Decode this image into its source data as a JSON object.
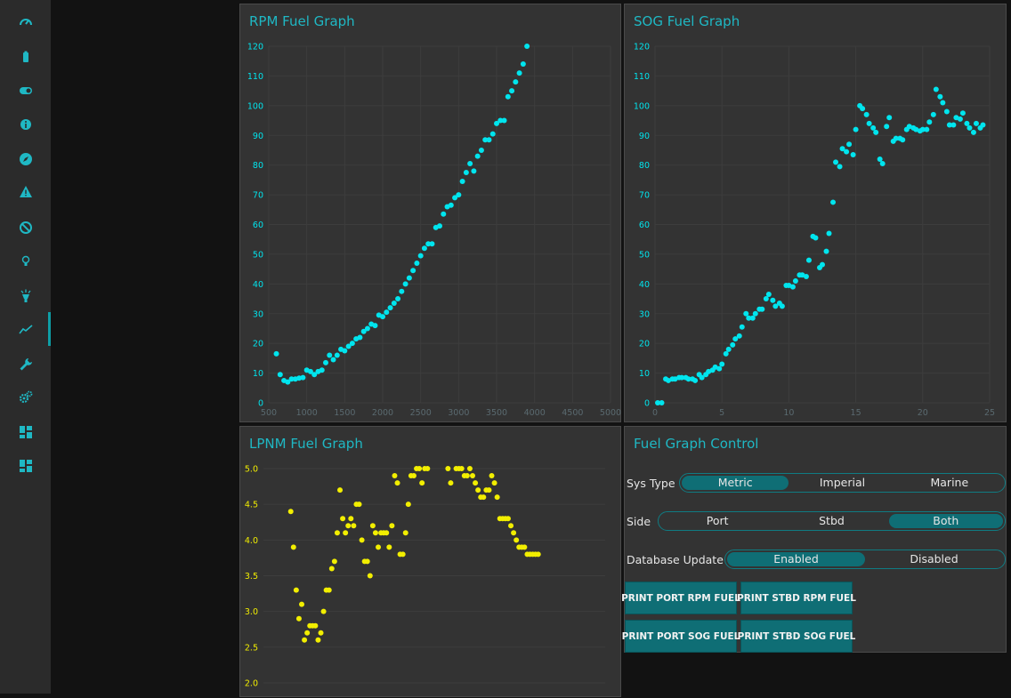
{
  "sidebar": {
    "accent": "#0e9ea6",
    "items": [
      {
        "name": "gauge-icon"
      },
      {
        "name": "battery-icon"
      },
      {
        "name": "toggle-icon"
      },
      {
        "name": "info-icon"
      },
      {
        "name": "compass-icon"
      },
      {
        "name": "warning-icon"
      },
      {
        "name": "ban-icon"
      },
      {
        "name": "lightbulb-icon"
      },
      {
        "name": "spotlight-icon"
      },
      {
        "name": "chart-line-icon",
        "active": true
      },
      {
        "name": "wrench-icon"
      },
      {
        "name": "gears-icon"
      },
      {
        "name": "dashboard-icon"
      },
      {
        "name": "dashboard-alt-icon"
      }
    ]
  },
  "rpm_panel": {
    "title": "RPM Fuel Graph"
  },
  "sog_panel": {
    "title": "SOG Fuel Graph"
  },
  "lpnm_panel": {
    "title": "LPNM Fuel Graph"
  },
  "control": {
    "title": "Fuel Graph Control",
    "sys_type": {
      "label": "Sys Type",
      "options": [
        "Metric",
        "Imperial",
        "Marine"
      ],
      "selected": "Metric"
    },
    "side": {
      "label": "Side",
      "options": [
        "Port",
        "Stbd",
        "Both"
      ],
      "selected": "Both"
    },
    "db_update": {
      "label": "Database Update",
      "options": [
        "Enabled",
        "Disabled"
      ],
      "selected": "Enabled"
    },
    "buttons": {
      "print_port_rpm": "PRINT PORT RPM FUEL",
      "print_stbd_rpm": "PRINT STBD RPM FUEL",
      "print_port_sog": "PRINT PORT SOG FUEL",
      "print_stbd_sog": "PRINT STBD SOG FUEL"
    }
  },
  "chart_data": [
    {
      "type": "scatter",
      "title": "RPM Fuel Graph",
      "color": "#00e5ee",
      "xlim": [
        500,
        5000
      ],
      "ylim": [
        0,
        120
      ],
      "xticks": [
        500,
        1000,
        1500,
        2000,
        2500,
        3000,
        3500,
        4000,
        4500,
        5000
      ],
      "yticks": [
        0,
        10,
        20,
        30,
        40,
        50,
        60,
        70,
        80,
        90,
        100,
        110,
        120
      ],
      "grid": true,
      "x": [
        600,
        650,
        700,
        750,
        800,
        850,
        900,
        950,
        1000,
        1050,
        1100,
        1150,
        1200,
        1250,
        1300,
        1350,
        1400,
        1450,
        1500,
        1550,
        1600,
        1650,
        1700,
        1750,
        1800,
        1850,
        1900,
        1950,
        2000,
        2050,
        2100,
        2150,
        2200,
        2250,
        2300,
        2350,
        2400,
        2450,
        2500,
        2550,
        2600,
        2650,
        2700,
        2750,
        2800,
        2850,
        2900,
        2950,
        3000,
        3050,
        3100,
        3150,
        3200,
        3250,
        3300,
        3350,
        3400,
        3450,
        3500,
        3550,
        3600,
        3650,
        3700,
        3750,
        3800,
        3850,
        3900
      ],
      "y": [
        16.5,
        9.5,
        7.5,
        7,
        8,
        8,
        8.3,
        8.5,
        11,
        10.5,
        9.5,
        10.5,
        11,
        13.5,
        16,
        14.5,
        16,
        18,
        17.5,
        19,
        20,
        21.5,
        22,
        24,
        25,
        26.5,
        26,
        29.5,
        29,
        30.5,
        32,
        33.5,
        35,
        37.5,
        40,
        42,
        44.5,
        47,
        49.5,
        52,
        53.5,
        53.5,
        59,
        59.5,
        63.5,
        66,
        66.5,
        69,
        70,
        74.5,
        77.5,
        80.5,
        78,
        83,
        85,
        88.5,
        88.5,
        90.5,
        94,
        95,
        95,
        103,
        105,
        108,
        111,
        114,
        120
      ]
    },
    {
      "type": "scatter",
      "title": "SOG Fuel Graph",
      "color": "#00e5ee",
      "xlim": [
        0,
        25
      ],
      "ylim": [
        0,
        120
      ],
      "xticks": [
        0,
        5,
        10,
        15,
        20,
        25
      ],
      "yticks": [
        0,
        10,
        20,
        30,
        40,
        50,
        60,
        70,
        80,
        90,
        100,
        110,
        120
      ],
      "grid": true,
      "x": [
        0.2,
        0.5,
        0.8,
        1.0,
        1.3,
        1.5,
        1.8,
        2.0,
        2.3,
        2.5,
        2.8,
        3.0,
        3.3,
        3.5,
        3.8,
        4.0,
        4.3,
        4.5,
        4.8,
        5.0,
        5.3,
        5.5,
        5.8,
        6.0,
        6.3,
        6.5,
        6.8,
        7.0,
        7.3,
        7.5,
        7.8,
        8.0,
        8.3,
        8.5,
        8.8,
        9.0,
        9.3,
        9.5,
        9.8,
        10.0,
        10.3,
        10.5,
        10.8,
        11.0,
        11.3,
        11.5,
        11.8,
        12.0,
        12.3,
        12.5,
        12.8,
        13.0,
        13.3,
        13.5,
        13.8,
        14.0,
        14.3,
        14.5,
        14.8,
        15.0,
        15.3,
        15.5,
        15.8,
        16.0,
        16.3,
        16.5,
        16.8,
        17.0,
        17.3,
        17.5,
        17.8,
        18.0,
        18.3,
        18.5,
        18.8,
        19.0,
        19.3,
        19.5,
        19.8,
        20.0,
        20.3,
        20.5,
        20.8,
        21.0,
        21.3,
        21.5,
        21.8,
        22.0,
        22.3,
        22.5,
        22.8,
        23.0,
        23.3,
        23.5,
        23.8,
        24.0,
        24.3,
        24.5
      ],
      "y": [
        0,
        0,
        8,
        7.5,
        8,
        8,
        8.5,
        8.5,
        8.5,
        8,
        8,
        7.5,
        9.5,
        8.5,
        9.5,
        10.5,
        11,
        12,
        11.5,
        13,
        16.5,
        18,
        19.5,
        21.5,
        22.5,
        25.5,
        30,
        28.5,
        28.5,
        30,
        31.5,
        31.5,
        35,
        36.5,
        34.5,
        32.5,
        33.5,
        32.5,
        39.5,
        39.5,
        39,
        41,
        43,
        43,
        42.5,
        48,
        56,
        55.5,
        45.5,
        46.5,
        51,
        57,
        67.5,
        81,
        79.5,
        85.5,
        84.5,
        87,
        83.5,
        92,
        100,
        99,
        97,
        94,
        92.5,
        91,
        82,
        80.5,
        93,
        96,
        88,
        89,
        89,
        88.5,
        92,
        93,
        92.5,
        92,
        91.5,
        92,
        92,
        94.5,
        97,
        105.5,
        103,
        101,
        98,
        93.5,
        93.5,
        96,
        95.5,
        97.5,
        94,
        92.5,
        91,
        94,
        92.5,
        93.5
      ]
    },
    {
      "type": "scatter",
      "title": "LPNM Fuel Graph",
      "color": "#f2ee00",
      "xlim": [
        0,
        25
      ],
      "ylim": [
        2.0,
        5.0
      ],
      "yticks": [
        2.0,
        2.5,
        3.0,
        3.5,
        4.0,
        4.5,
        5.0
      ],
      "grid": true,
      "x": [
        2.0,
        2.2,
        2.4,
        2.6,
        2.8,
        3.0,
        3.2,
        3.4,
        3.6,
        3.8,
        4.0,
        4.2,
        4.4,
        4.6,
        4.8,
        5.0,
        5.2,
        5.4,
        5.6,
        5.8,
        6.0,
        6.2,
        6.4,
        6.6,
        6.8,
        7.0,
        7.2,
        7.4,
        7.6,
        7.8,
        8.0,
        8.2,
        8.4,
        8.6,
        8.8,
        9.0,
        9.2,
        9.4,
        9.6,
        9.8,
        10.0,
        10.2,
        10.4,
        10.6,
        10.8,
        11.0,
        11.2,
        11.4,
        11.6,
        11.8,
        12.0,
        13.5,
        13.7,
        14.1,
        14.3,
        14.5,
        14.7,
        14.9,
        15.1,
        15.3,
        15.5,
        15.7,
        15.9,
        16.1,
        16.3,
        16.5,
        16.7,
        16.9,
        17.1,
        17.3,
        17.5,
        17.7,
        17.9,
        18.1,
        18.3,
        18.5,
        18.7,
        18.9,
        19.1,
        19.3,
        19.5,
        19.7,
        19.9,
        20.1
      ],
      "y": [
        4.4,
        3.9,
        3.3,
        2.9,
        3.1,
        2.6,
        2.7,
        2.8,
        2.8,
        2.8,
        2.6,
        2.7,
        3.0,
        3.3,
        3.3,
        3.6,
        3.7,
        4.1,
        4.7,
        4.3,
        4.1,
        4.2,
        4.3,
        4.2,
        4.5,
        4.5,
        4.0,
        3.7,
        3.7,
        3.5,
        4.2,
        4.1,
        3.9,
        4.1,
        4.1,
        4.1,
        3.9,
        4.2,
        4.9,
        4.8,
        3.8,
        3.8,
        4.1,
        4.5,
        4.9,
        4.9,
        5.0,
        5.0,
        4.8,
        5.0,
        5.0,
        5.0,
        4.8,
        5.0,
        5.0,
        5.0,
        4.9,
        4.9,
        5.0,
        4.9,
        4.8,
        4.7,
        4.6,
        4.6,
        4.7,
        4.7,
        4.9,
        4.8,
        4.6,
        4.3,
        4.3,
        4.3,
        4.3,
        4.2,
        4.1,
        4.0,
        3.9,
        3.9,
        3.9,
        3.8,
        3.8,
        3.8,
        3.8,
        3.8
      ]
    }
  ]
}
